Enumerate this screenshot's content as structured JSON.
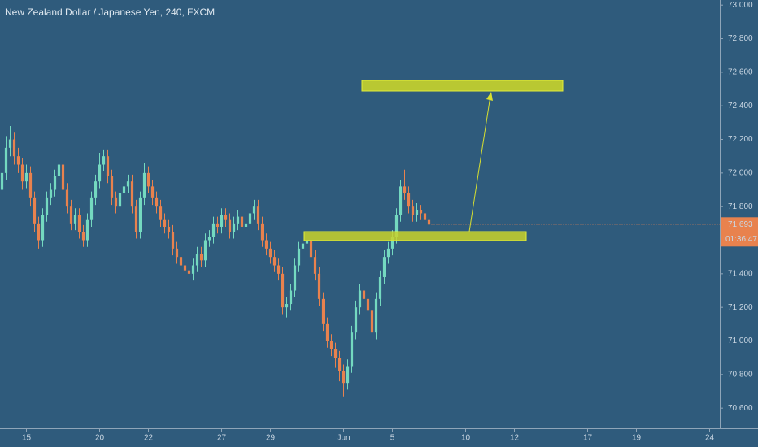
{
  "chart_data": {
    "type": "candlestick",
    "title": "New Zealand Dollar / Japanese Yen, 240, FXCM",
    "up_color": "#74d9c0",
    "down_color": "#e8824e",
    "ylim": [
      70.475,
      73.03
    ],
    "yticks": [
      {
        "value": 70.6,
        "label": "70.600"
      },
      {
        "value": 70.8,
        "label": "70.800"
      },
      {
        "value": 71.0,
        "label": "71.000"
      },
      {
        "value": 71.2,
        "label": "71.200"
      },
      {
        "value": 71.4,
        "label": "71.400"
      },
      {
        "value": 71.6,
        "label": "71.600"
      },
      {
        "value": 71.8,
        "label": "71.800"
      },
      {
        "value": 72.0,
        "label": "72.000"
      },
      {
        "value": 72.2,
        "label": "72.200"
      },
      {
        "value": 72.4,
        "label": "72.400"
      },
      {
        "value": 72.6,
        "label": "72.600"
      },
      {
        "value": 72.8,
        "label": "72.800"
      },
      {
        "value": 73.0,
        "label": "73.000"
      }
    ],
    "xlim": [
      -0.5,
      176.5
    ],
    "xticks": [
      {
        "value": 6,
        "label": "15"
      },
      {
        "value": 24,
        "label": "20"
      },
      {
        "value": 36,
        "label": "22"
      },
      {
        "value": 54,
        "label": "27"
      },
      {
        "value": 66,
        "label": "29"
      },
      {
        "value": 84,
        "label": "Jun"
      },
      {
        "value": 96,
        "label": "5"
      },
      {
        "value": 114,
        "label": "10"
      },
      {
        "value": 126,
        "label": "12"
      },
      {
        "value": 144,
        "label": "17"
      },
      {
        "value": 156,
        "label": "19"
      },
      {
        "value": 174,
        "label": "24"
      }
    ],
    "last_price": {
      "value": 71.693,
      "label": "71.693"
    },
    "countdown": "01:36:47",
    "ohlc": [
      [
        71.9,
        72.05,
        71.85,
        72.0
      ],
      [
        72.0,
        72.22,
        71.96,
        72.15
      ],
      [
        72.15,
        72.28,
        72.1,
        72.2
      ],
      [
        72.2,
        72.24,
        72.05,
        72.1
      ],
      [
        72.1,
        72.15,
        72.0,
        72.05
      ],
      [
        72.05,
        72.09,
        71.9,
        71.95
      ],
      [
        71.95,
        72.05,
        71.91,
        72.0
      ],
      [
        72.0,
        72.04,
        71.8,
        71.85
      ],
      [
        71.85,
        71.89,
        71.65,
        71.7
      ],
      [
        71.7,
        71.74,
        71.55,
        71.6
      ],
      [
        71.6,
        71.79,
        71.56,
        71.75
      ],
      [
        71.75,
        71.89,
        71.71,
        71.85
      ],
      [
        71.85,
        71.94,
        71.81,
        71.9
      ],
      [
        71.9,
        72.02,
        71.86,
        71.98
      ],
      [
        71.98,
        72.12,
        71.94,
        72.05
      ],
      [
        72.05,
        72.09,
        71.86,
        71.9
      ],
      [
        71.9,
        71.94,
        71.76,
        71.8
      ],
      [
        71.8,
        71.84,
        71.66,
        71.7
      ],
      [
        71.7,
        71.79,
        71.66,
        71.75
      ],
      [
        71.75,
        71.79,
        71.61,
        71.65
      ],
      [
        71.65,
        71.69,
        71.56,
        71.6
      ],
      [
        71.6,
        71.76,
        71.56,
        71.72
      ],
      [
        71.72,
        71.89,
        71.68,
        71.85
      ],
      [
        71.85,
        71.99,
        71.81,
        71.95
      ],
      [
        71.95,
        72.12,
        71.91,
        72.05
      ],
      [
        72.05,
        72.14,
        72.01,
        72.1
      ],
      [
        72.1,
        72.14,
        71.94,
        71.98
      ],
      [
        71.98,
        72.02,
        71.81,
        71.85
      ],
      [
        71.85,
        71.89,
        71.76,
        71.8
      ],
      [
        71.8,
        71.92,
        71.76,
        71.88
      ],
      [
        71.88,
        71.96,
        71.84,
        71.92
      ],
      [
        71.92,
        71.99,
        71.88,
        71.95
      ],
      [
        71.95,
        71.99,
        71.76,
        71.8
      ],
      [
        71.8,
        71.84,
        71.61,
        71.65
      ],
      [
        71.65,
        71.89,
        71.61,
        71.85
      ],
      [
        71.85,
        72.06,
        71.81,
        72.0
      ],
      [
        72.0,
        72.04,
        71.88,
        71.92
      ],
      [
        71.92,
        71.96,
        71.81,
        71.85
      ],
      [
        71.85,
        71.89,
        71.76,
        71.8
      ],
      [
        71.8,
        71.84,
        71.68,
        71.72
      ],
      [
        71.72,
        71.76,
        71.64,
        71.68
      ],
      [
        71.68,
        71.72,
        71.61,
        71.65
      ],
      [
        71.65,
        71.69,
        71.51,
        71.55
      ],
      [
        71.55,
        71.59,
        71.46,
        71.5
      ],
      [
        71.5,
        71.54,
        71.41,
        71.45
      ],
      [
        71.45,
        71.49,
        71.36,
        71.42
      ],
      [
        71.42,
        71.46,
        71.34,
        71.4
      ],
      [
        71.4,
        71.49,
        71.36,
        71.45
      ],
      [
        71.45,
        71.56,
        71.41,
        71.52
      ],
      [
        71.52,
        71.56,
        71.44,
        71.48
      ],
      [
        71.48,
        71.64,
        71.44,
        71.6
      ],
      [
        71.6,
        71.66,
        71.56,
        71.62
      ],
      [
        71.62,
        71.74,
        71.58,
        71.7
      ],
      [
        71.7,
        71.74,
        71.64,
        71.68
      ],
      [
        71.68,
        71.79,
        71.64,
        71.75
      ],
      [
        71.75,
        71.79,
        71.68,
        71.72
      ],
      [
        71.72,
        71.76,
        71.61,
        71.65
      ],
      [
        71.65,
        71.74,
        71.61,
        71.7
      ],
      [
        71.7,
        71.78,
        71.66,
        71.74
      ],
      [
        71.74,
        71.78,
        71.64,
        71.68
      ],
      [
        71.68,
        71.74,
        71.64,
        71.7
      ],
      [
        71.7,
        71.8,
        71.66,
        71.76
      ],
      [
        71.76,
        71.84,
        71.72,
        71.8
      ],
      [
        71.8,
        71.84,
        71.66,
        71.7
      ],
      [
        71.7,
        71.74,
        71.56,
        71.6
      ],
      [
        71.6,
        71.64,
        71.51,
        71.55
      ],
      [
        71.55,
        71.59,
        71.46,
        71.5
      ],
      [
        71.5,
        71.54,
        71.41,
        71.45
      ],
      [
        71.45,
        71.49,
        71.36,
        71.4
      ],
      [
        71.4,
        71.44,
        71.16,
        71.2
      ],
      [
        71.2,
        71.26,
        71.14,
        71.22
      ],
      [
        71.22,
        71.34,
        71.18,
        71.3
      ],
      [
        71.3,
        71.49,
        71.26,
        71.45
      ],
      [
        71.45,
        71.59,
        71.41,
        71.55
      ],
      [
        71.55,
        71.62,
        71.51,
        71.58
      ],
      [
        71.58,
        71.64,
        71.54,
        71.6
      ],
      [
        71.6,
        71.64,
        71.46,
        71.5
      ],
      [
        71.5,
        71.54,
        71.36,
        71.4
      ],
      [
        71.4,
        71.44,
        71.21,
        71.25
      ],
      [
        71.25,
        71.29,
        71.06,
        71.1
      ],
      [
        71.1,
        71.14,
        70.96,
        71.0
      ],
      [
        71.0,
        71.04,
        70.91,
        70.95
      ],
      [
        70.95,
        70.99,
        70.84,
        70.9
      ],
      [
        70.9,
        70.94,
        70.76,
        70.82
      ],
      [
        70.82,
        70.86,
        70.67,
        70.75
      ],
      [
        70.75,
        70.89,
        70.71,
        70.85
      ],
      [
        70.85,
        71.09,
        70.81,
        71.05
      ],
      [
        71.05,
        71.24,
        71.01,
        71.2
      ],
      [
        71.2,
        71.34,
        71.16,
        71.3
      ],
      [
        71.3,
        71.34,
        71.21,
        71.25
      ],
      [
        71.25,
        71.29,
        71.14,
        71.18
      ],
      [
        71.18,
        71.22,
        71.01,
        71.05
      ],
      [
        71.05,
        71.29,
        71.01,
        71.25
      ],
      [
        71.25,
        71.42,
        71.21,
        71.38
      ],
      [
        71.38,
        71.54,
        71.34,
        71.5
      ],
      [
        71.5,
        71.59,
        71.46,
        71.55
      ],
      [
        71.55,
        71.66,
        71.51,
        71.62
      ],
      [
        71.62,
        71.79,
        71.58,
        71.75
      ],
      [
        71.75,
        71.96,
        71.71,
        71.92
      ],
      [
        71.92,
        72.02,
        71.84,
        71.88
      ],
      [
        71.88,
        71.92,
        71.76,
        71.8
      ],
      [
        71.8,
        71.84,
        71.71,
        71.75
      ],
      [
        71.75,
        71.82,
        71.71,
        71.78
      ],
      [
        71.78,
        71.81,
        71.72,
        71.76
      ],
      [
        71.76,
        71.79,
        71.68,
        71.72
      ],
      [
        71.72,
        71.75,
        71.6,
        71.693
      ]
    ]
  }
}
